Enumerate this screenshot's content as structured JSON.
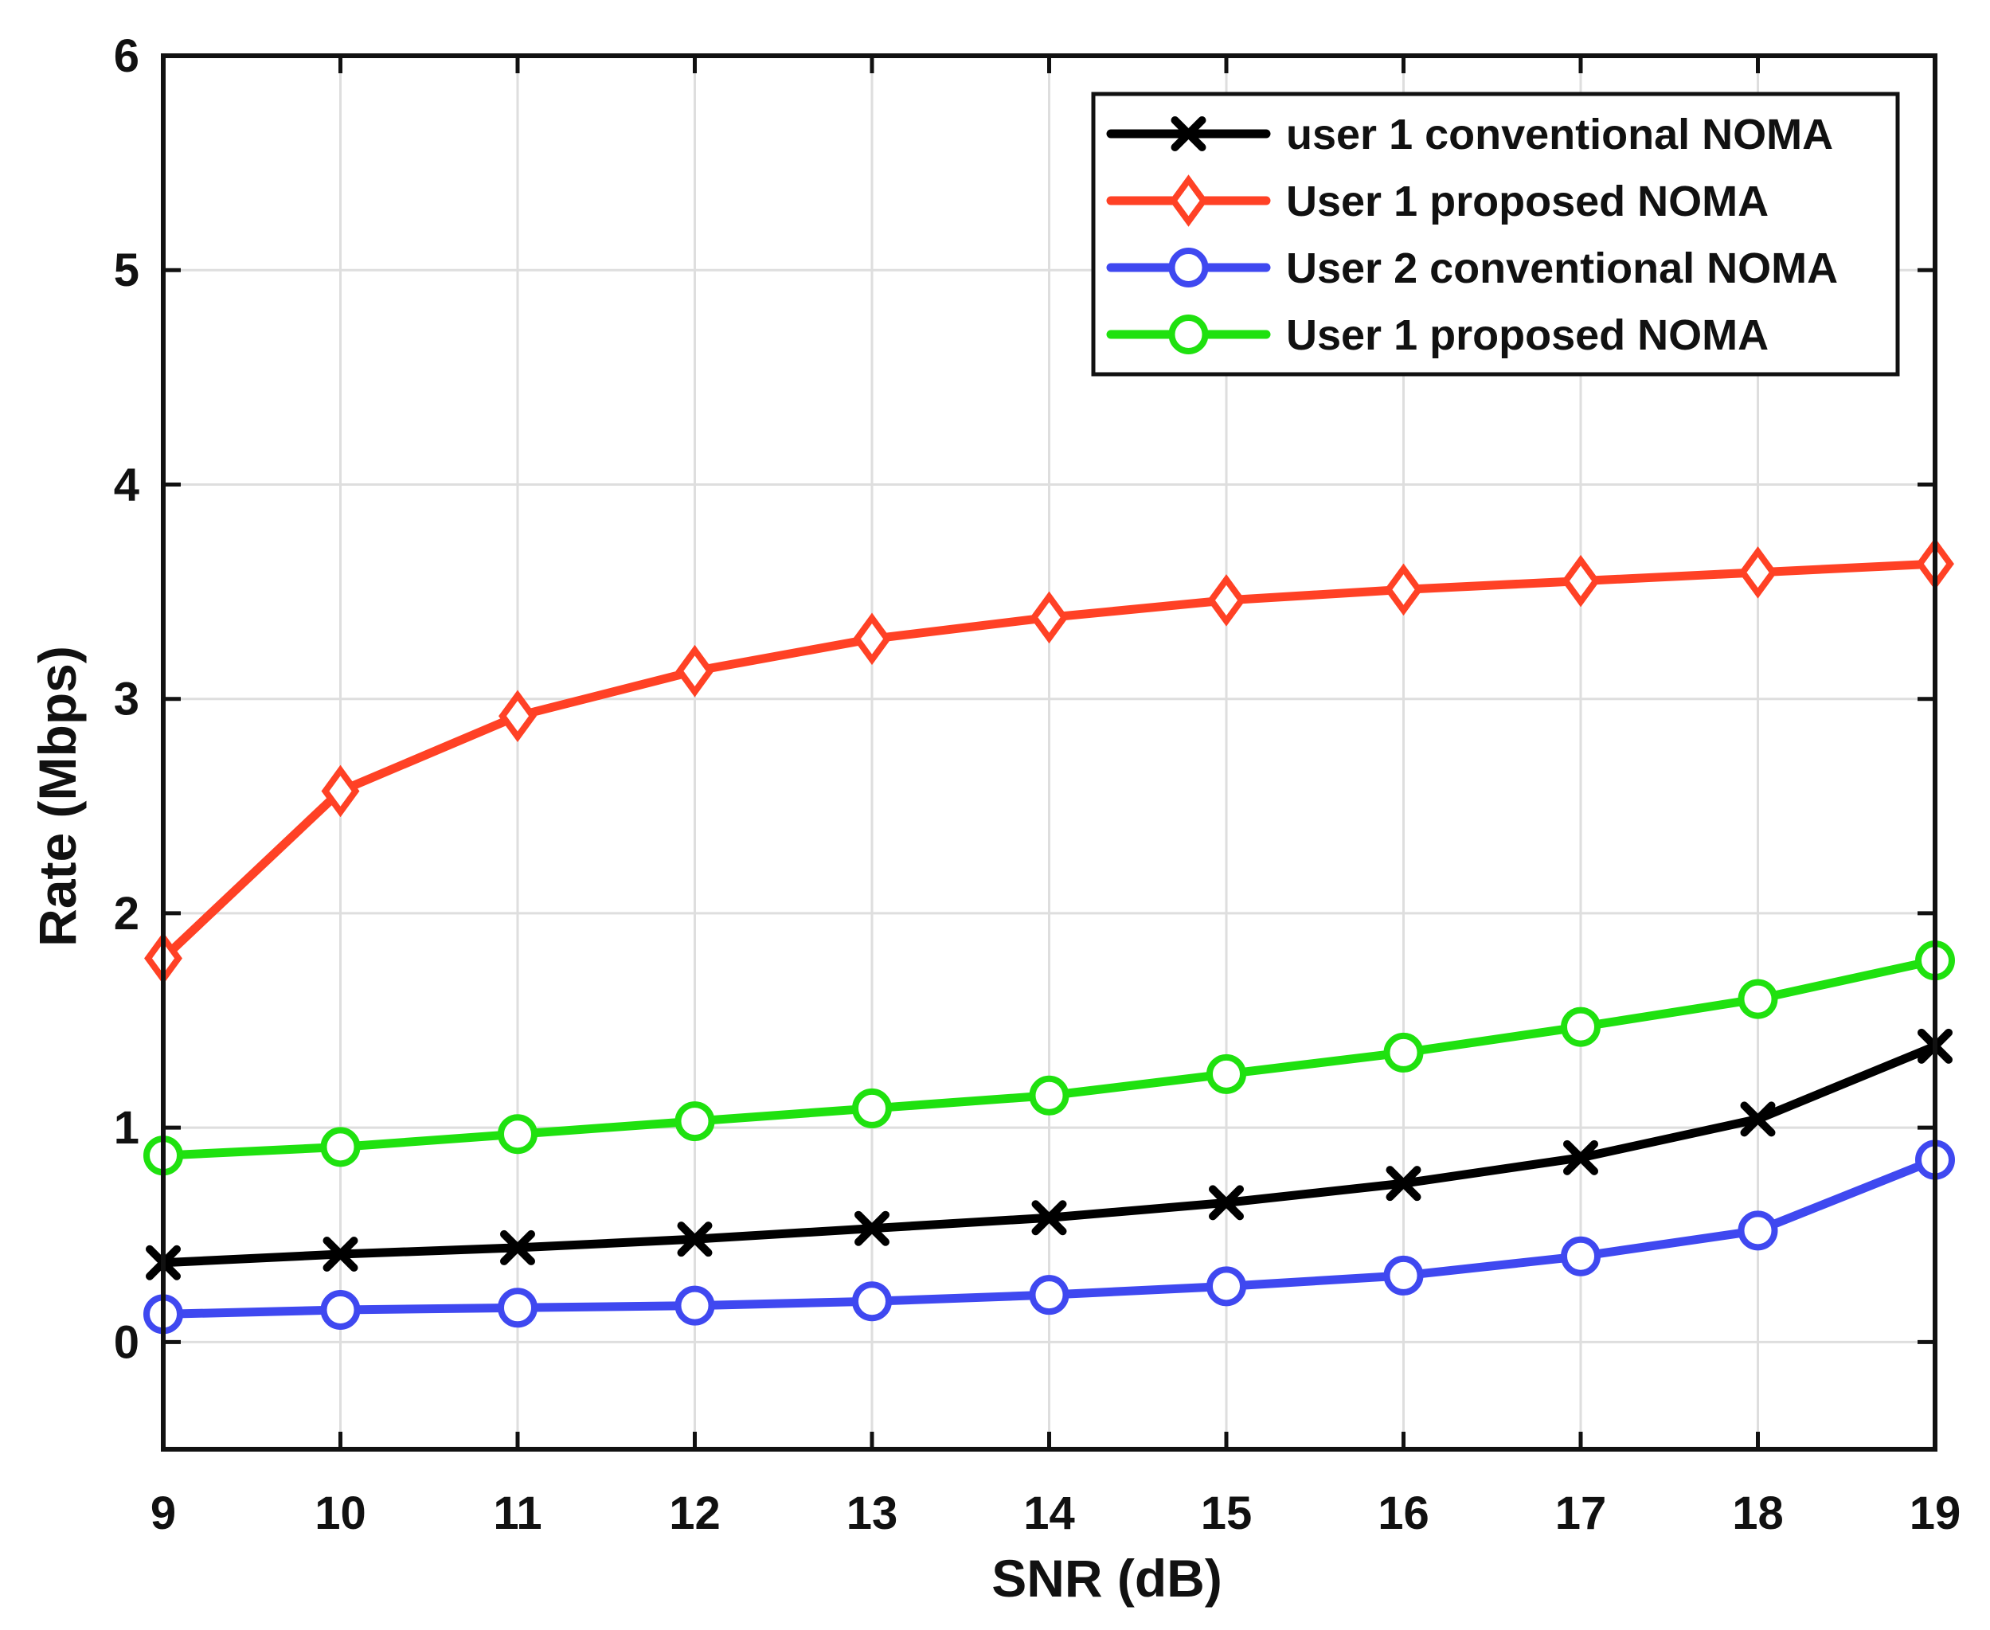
{
  "chart_data": {
    "type": "line",
    "title": "",
    "xlabel": "SNR (dB)",
    "ylabel": "Rate (Mbps)",
    "xlim": [
      9,
      19
    ],
    "ylim": [
      -0.5,
      6
    ],
    "xticks": [
      9,
      10,
      11,
      12,
      13,
      14,
      15,
      16,
      17,
      18,
      19
    ],
    "yticks": [
      0,
      1,
      2,
      3,
      4,
      5,
      6
    ],
    "grid": true,
    "legend_position": "top-right",
    "x": [
      9,
      10,
      11,
      12,
      13,
      14,
      15,
      16,
      17,
      18,
      19
    ],
    "series": [
      {
        "name": "user 1 conventional NOMA",
        "color": "#000000",
        "marker": "x",
        "values": [
          0.37,
          0.41,
          0.44,
          0.48,
          0.53,
          0.58,
          0.65,
          0.74,
          0.86,
          1.04,
          1.38
        ]
      },
      {
        "name": "User 1 proposed NOMA",
        "color": "#ff4125",
        "marker": "diamond",
        "values": [
          1.79,
          2.57,
          2.92,
          3.13,
          3.28,
          3.38,
          3.46,
          3.51,
          3.55,
          3.59,
          3.63
        ]
      },
      {
        "name": "User 2 conventional NOMA",
        "color": "#3f48f0",
        "marker": "circle",
        "values": [
          0.13,
          0.15,
          0.16,
          0.17,
          0.19,
          0.22,
          0.26,
          0.31,
          0.4,
          0.52,
          0.85
        ]
      },
      {
        "name": "User 1 proposed NOMA",
        "color": "#1fe10f",
        "marker": "circle",
        "values": [
          0.87,
          0.91,
          0.97,
          1.03,
          1.09,
          1.15,
          1.25,
          1.35,
          1.47,
          1.6,
          1.78
        ]
      }
    ]
  }
}
